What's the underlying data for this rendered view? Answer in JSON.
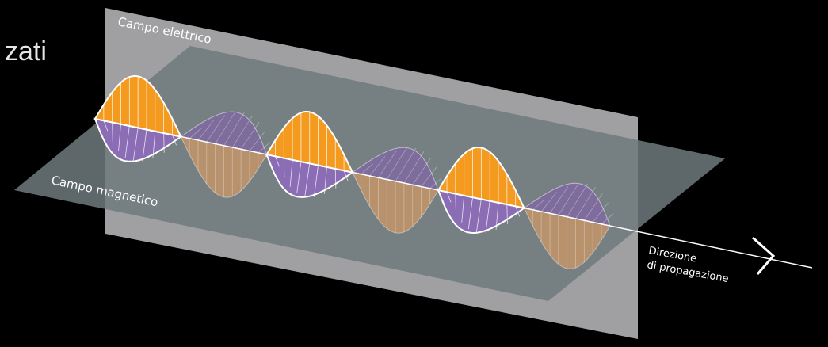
{
  "header": {
    "title": "zati"
  },
  "labels": {
    "electric": "Campo elettrico",
    "magnetic": "Campo magnetico",
    "direction": [
      "Direzione",
      "di propagazione"
    ]
  }
}
